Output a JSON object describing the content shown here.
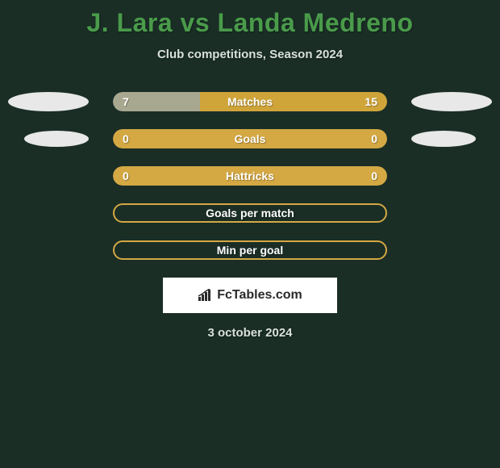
{
  "title": "J. Lara vs Landa Medreno",
  "subtitle": "Club competitions, Season 2024",
  "date": "3 october 2024",
  "watermark": "FcTables.com",
  "colors": {
    "background": "#1a2e26",
    "title": "#4a9b4a",
    "text_light": "#d8e0db",
    "bar_left_fill": "#a8a890",
    "bar_right_fill": "#cfa53a",
    "bar_border": "#d4a843",
    "bar_empty_bg": "#d4a843",
    "logo_placeholder": "#e8e8e8",
    "watermark_bg": "#ffffff",
    "watermark_text": "#2a2a2a"
  },
  "rows": [
    {
      "label": "Matches",
      "left": "7",
      "right": "15",
      "left_pct": 31.8,
      "right_pct": 68.2,
      "left_color": "#a8a890",
      "right_color": "#cfa53a",
      "show_left_logo": true,
      "show_right_logo": true,
      "logo_size": "large",
      "style": "filled"
    },
    {
      "label": "Goals",
      "left": "0",
      "right": "0",
      "left_pct": 50,
      "right_pct": 50,
      "left_color": "#d4a843",
      "right_color": "#d4a843",
      "show_left_logo": true,
      "show_right_logo": true,
      "logo_size": "small",
      "style": "filled"
    },
    {
      "label": "Hattricks",
      "left": "0",
      "right": "0",
      "left_pct": 50,
      "right_pct": 50,
      "left_color": "#d4a843",
      "right_color": "#d4a843",
      "show_left_logo": false,
      "show_right_logo": false,
      "logo_size": "small",
      "style": "filled"
    },
    {
      "label": "Goals per match",
      "left": "",
      "right": "",
      "left_pct": 0,
      "right_pct": 0,
      "left_color": "",
      "right_color": "",
      "show_left_logo": false,
      "show_right_logo": false,
      "logo_size": "small",
      "style": "border"
    },
    {
      "label": "Min per goal",
      "left": "",
      "right": "",
      "left_pct": 0,
      "right_pct": 0,
      "left_color": "",
      "right_color": "",
      "show_left_logo": false,
      "show_right_logo": false,
      "logo_size": "small",
      "style": "border"
    }
  ]
}
